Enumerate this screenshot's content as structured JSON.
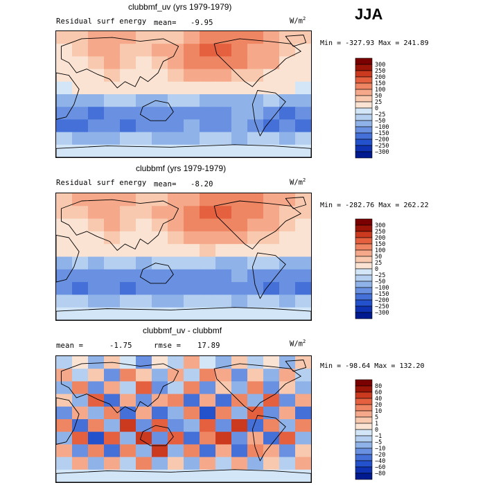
{
  "season": "JJA",
  "colors": {
    "pos": [
      "#fbe3d3",
      "#f8c9ae",
      "#f5a98a",
      "#ef8663",
      "#e5603f",
      "#cb3a1f",
      "#9b1408",
      "#7a0000"
    ],
    "neg": [
      "#d3e6f7",
      "#b4cff0",
      "#8fb3e9",
      "#6a91e1",
      "#4470d8",
      "#2452cc",
      "#0f32b3",
      "#001a8f"
    ],
    "land_outline": "#000000"
  },
  "chart_data": [
    {
      "type": "heatmap",
      "title": "clubbmf_uv (yrs 1979-1979)",
      "variable_label": "Residual surf energy",
      "stat_label": "mean=",
      "stat_value": "-9.95",
      "units_base": "W/m",
      "units_exp": "2",
      "min_label": "Min =",
      "min_value": "-327.93",
      "max_label": "Max =",
      "max_value": "241.89",
      "colorbar_levels": [
        "300",
        "250",
        "200",
        "150",
        "100",
        "50",
        "25",
        "0",
        "−25",
        "−50",
        "−100",
        "−150",
        "−200",
        "−250",
        "−300"
      ],
      "field_rows": [
        [
          2,
          2,
          3,
          3,
          3,
          2,
          2,
          2,
          3,
          4,
          4,
          4,
          4,
          3,
          2,
          2
        ],
        [
          1,
          2,
          3,
          3,
          2,
          2,
          3,
          3,
          4,
          5,
          5,
          4,
          3,
          3,
          2,
          1
        ],
        [
          1,
          1,
          2,
          3,
          2,
          1,
          2,
          3,
          4,
          4,
          4,
          4,
          3,
          3,
          1,
          1
        ],
        [
          0,
          0,
          1,
          2,
          1,
          1,
          1,
          2,
          3,
          3,
          3,
          2,
          2,
          1,
          0,
          0
        ],
        [
          -1,
          0,
          0,
          1,
          0,
          0,
          0,
          1,
          1,
          1,
          1,
          1,
          1,
          0,
          0,
          -1
        ],
        [
          -3,
          -3,
          -3,
          -2,
          -2,
          -3,
          -3,
          -2,
          -2,
          -3,
          -3,
          -3,
          -3,
          -2,
          -3,
          -3
        ],
        [
          -4,
          -4,
          -5,
          -4,
          -4,
          -4,
          -4,
          -4,
          -4,
          -4,
          -4,
          -3,
          -3,
          -4,
          -5,
          -4
        ],
        [
          -5,
          -5,
          -4,
          -4,
          -5,
          -4,
          -4,
          -4,
          -3,
          -4,
          -4,
          -3,
          -4,
          -5,
          -4,
          -5
        ],
        [
          -2,
          -3,
          -3,
          -3,
          -2,
          -2,
          -3,
          -3,
          -3,
          -2,
          -2,
          -3,
          -2,
          -2,
          -3,
          -2
        ],
        [
          -1,
          -1,
          -1,
          -1,
          -1,
          -1,
          -1,
          -1,
          -1,
          -1,
          -1,
          -1,
          -1,
          -1,
          -1,
          -1
        ]
      ]
    },
    {
      "type": "heatmap",
      "title": "clubbmf (yrs 1979-1979)",
      "variable_label": "Residual surf energy",
      "stat_label": "mean=",
      "stat_value": "-8.20",
      "units_base": "W/m",
      "units_exp": "2",
      "min_label": "Min =",
      "min_value": "-282.76",
      "max_label": "Max =",
      "max_value": "262.22",
      "colorbar_levels": [
        "300",
        "250",
        "200",
        "150",
        "100",
        "50",
        "25",
        "0",
        "−25",
        "−50",
        "−100",
        "−150",
        "−200",
        "−250",
        "−300"
      ],
      "field_rows": [
        [
          2,
          3,
          3,
          3,
          3,
          2,
          2,
          3,
          3,
          4,
          4,
          4,
          4,
          3,
          3,
          2
        ],
        [
          2,
          2,
          3,
          3,
          2,
          2,
          3,
          3,
          4,
          5,
          5,
          4,
          4,
          3,
          2,
          2
        ],
        [
          1,
          1,
          2,
          3,
          2,
          1,
          2,
          3,
          4,
          4,
          4,
          4,
          3,
          3,
          2,
          1
        ],
        [
          0,
          1,
          1,
          2,
          1,
          1,
          1,
          2,
          3,
          3,
          3,
          3,
          2,
          2,
          1,
          0
        ],
        [
          0,
          0,
          0,
          1,
          1,
          0,
          1,
          1,
          1,
          2,
          1,
          1,
          1,
          1,
          0,
          0
        ],
        [
          -3,
          -2,
          -3,
          -2,
          -2,
          -3,
          -2,
          -2,
          -2,
          -2,
          -3,
          -3,
          -2,
          -2,
          -3,
          -3
        ],
        [
          -4,
          -4,
          -4,
          -4,
          -4,
          -4,
          -4,
          -4,
          -4,
          -4,
          -4,
          -3,
          -4,
          -4,
          -4,
          -4
        ],
        [
          -4,
          -5,
          -4,
          -4,
          -5,
          -4,
          -4,
          -4,
          -4,
          -4,
          -4,
          -4,
          -4,
          -5,
          -4,
          -5
        ],
        [
          -2,
          -2,
          -3,
          -3,
          -2,
          -2,
          -3,
          -3,
          -2,
          -2,
          -2,
          -3,
          -2,
          -2,
          -3,
          -2
        ],
        [
          -1,
          -1,
          -1,
          -1,
          -1,
          -1,
          -1,
          -1,
          -1,
          -1,
          -1,
          -1,
          -1,
          -1,
          -1,
          -1
        ]
      ]
    },
    {
      "type": "heatmap",
      "title": "clubbmf_uv - clubbmf",
      "variable_label": "mean =",
      "stat_label": "",
      "stat_value": "-1.75",
      "rmse_label": "rmse =",
      "rmse_value": "17.89",
      "units_base": "W/m",
      "units_exp": "2",
      "min_label": "Min =",
      "min_value": "-98.64",
      "max_label": "Max =",
      "max_value": "132.20",
      "colorbar_levels": [
        "80",
        "60",
        "40",
        "20",
        "10",
        "5",
        "1",
        "0",
        "−1",
        "−5",
        "−10",
        "−20",
        "−40",
        "−60",
        "−80"
      ],
      "field_rows": [
        [
          -2,
          1,
          -3,
          2,
          -1,
          -4,
          1,
          -2,
          3,
          -1,
          -3,
          2,
          -2,
          1,
          -3,
          2
        ],
        [
          3,
          -2,
          2,
          -4,
          4,
          2,
          -3,
          3,
          -2,
          4,
          3,
          -4,
          2,
          -3,
          3,
          -2
        ],
        [
          -3,
          4,
          -4,
          3,
          -2,
          5,
          -4,
          -2,
          4,
          -4,
          2,
          -3,
          4,
          -4,
          2,
          -3
        ],
        [
          2,
          -3,
          5,
          -5,
          3,
          -4,
          3,
          4,
          -5,
          3,
          -5,
          4,
          -3,
          5,
          -4,
          3
        ],
        [
          -4,
          3,
          -3,
          4,
          -5,
          3,
          -5,
          -3,
          4,
          -6,
          4,
          -3,
          5,
          -4,
          3,
          -5
        ],
        [
          4,
          -5,
          4,
          -3,
          6,
          -4,
          5,
          -4,
          -3,
          5,
          -4,
          6,
          -5,
          4,
          -3,
          4
        ],
        [
          -3,
          5,
          -6,
          5,
          -3,
          6,
          -4,
          5,
          -5,
          4,
          6,
          -4,
          3,
          -5,
          5,
          -3
        ],
        [
          3,
          -4,
          4,
          -5,
          4,
          -3,
          6,
          -3,
          4,
          -5,
          3,
          -5,
          4,
          3,
          -4,
          2
        ],
        [
          -2,
          3,
          -3,
          3,
          -2,
          4,
          -3,
          2,
          -3,
          3,
          -2,
          3,
          -3,
          2,
          -2,
          3
        ],
        [
          -1,
          -1,
          -1,
          -1,
          -1,
          -1,
          -1,
          -1,
          -1,
          -1,
          -1,
          -1,
          -1,
          -1,
          -1,
          -1
        ]
      ]
    }
  ]
}
